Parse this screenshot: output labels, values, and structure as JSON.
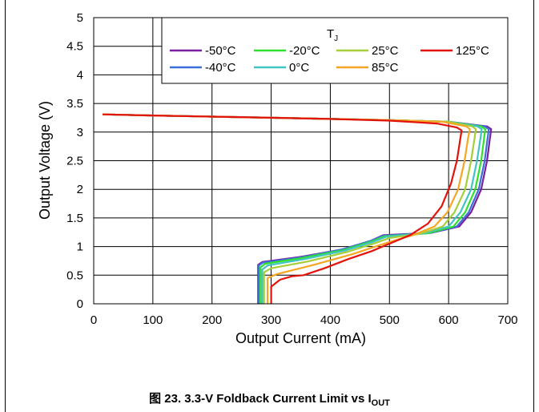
{
  "chart_data": {
    "type": "line",
    "title": "",
    "xlabel": "Output Current (mA)",
    "ylabel": "Output Voltage (V)",
    "xlim": [
      0,
      700
    ],
    "ylim": [
      0,
      5
    ],
    "x_ticks": [
      "0",
      "100",
      "200",
      "300",
      "400",
      "500",
      "600",
      "700"
    ],
    "y_ticks": [
      "0",
      "0.5",
      "1",
      "1.5",
      "2",
      "2.5",
      "3",
      "3.5",
      "4",
      "4.5",
      "5"
    ],
    "grid": true,
    "legend": {
      "title": "T",
      "title_sub": "J",
      "placement": "top-right"
    },
    "series": [
      {
        "name": "-50°C",
        "color": "#7B1FA2",
        "points": [
          [
            278,
            0
          ],
          [
            278,
            0.68
          ],
          [
            285,
            0.73
          ],
          [
            350,
            0.82
          ],
          [
            420,
            0.95
          ],
          [
            468,
            1.1
          ],
          [
            490,
            1.2
          ],
          [
            570,
            1.24
          ],
          [
            618,
            1.35
          ],
          [
            638,
            1.6
          ],
          [
            655,
            2.0
          ],
          [
            665,
            2.5
          ],
          [
            670,
            2.9
          ],
          [
            672,
            3.05
          ],
          [
            665,
            3.1
          ],
          [
            600,
            3.18
          ],
          [
            500,
            3.21
          ],
          [
            400,
            3.23
          ],
          [
            300,
            3.25
          ],
          [
            200,
            3.27
          ],
          [
            100,
            3.29
          ],
          [
            15,
            3.31
          ]
        ]
      },
      {
        "name": "-40°C",
        "color": "#3B6FD9",
        "points": [
          [
            279,
            0
          ],
          [
            279,
            0.67
          ],
          [
            286,
            0.72
          ],
          [
            350,
            0.81
          ],
          [
            420,
            0.95
          ],
          [
            468,
            1.1
          ],
          [
            490,
            1.19
          ],
          [
            568,
            1.24
          ],
          [
            614,
            1.35
          ],
          [
            634,
            1.6
          ],
          [
            651,
            2.0
          ],
          [
            661,
            2.5
          ],
          [
            666,
            2.9
          ],
          [
            668,
            3.05
          ],
          [
            661,
            3.1
          ],
          [
            600,
            3.18
          ],
          [
            500,
            3.21
          ],
          [
            400,
            3.23
          ],
          [
            300,
            3.25
          ],
          [
            200,
            3.27
          ],
          [
            100,
            3.29
          ],
          [
            15,
            3.31
          ]
        ]
      },
      {
        "name": "-20°C",
        "color": "#2FE02F",
        "points": [
          [
            282,
            0
          ],
          [
            282,
            0.64
          ],
          [
            290,
            0.7
          ],
          [
            352,
            0.8
          ],
          [
            422,
            0.94
          ],
          [
            470,
            1.09
          ],
          [
            492,
            1.18
          ],
          [
            564,
            1.23
          ],
          [
            608,
            1.35
          ],
          [
            628,
            1.6
          ],
          [
            645,
            2.0
          ],
          [
            655,
            2.5
          ],
          [
            660,
            2.9
          ],
          [
            662,
            3.05
          ],
          [
            655,
            3.1
          ],
          [
            600,
            3.18
          ],
          [
            500,
            3.21
          ],
          [
            400,
            3.23
          ],
          [
            300,
            3.25
          ],
          [
            200,
            3.27
          ],
          [
            100,
            3.29
          ],
          [
            15,
            3.31
          ]
        ]
      },
      {
        "name": "0°C",
        "color": "#40C4C4",
        "points": [
          [
            285,
            0
          ],
          [
            285,
            0.6
          ],
          [
            294,
            0.67
          ],
          [
            356,
            0.78
          ],
          [
            425,
            0.93
          ],
          [
            472,
            1.08
          ],
          [
            494,
            1.17
          ],
          [
            558,
            1.23
          ],
          [
            600,
            1.35
          ],
          [
            620,
            1.6
          ],
          [
            638,
            2.0
          ],
          [
            648,
            2.5
          ],
          [
            654,
            2.9
          ],
          [
            656,
            3.05
          ],
          [
            649,
            3.1
          ],
          [
            600,
            3.18
          ],
          [
            500,
            3.21
          ],
          [
            400,
            3.23
          ],
          [
            300,
            3.25
          ],
          [
            200,
            3.27
          ],
          [
            100,
            3.29
          ],
          [
            15,
            3.31
          ]
        ]
      },
      {
        "name": "25°C",
        "color": "#A6CE39",
        "points": [
          [
            288,
            0
          ],
          [
            288,
            0.55
          ],
          [
            300,
            0.62
          ],
          [
            362,
            0.74
          ],
          [
            430,
            0.91
          ],
          [
            476,
            1.06
          ],
          [
            500,
            1.15
          ],
          [
            550,
            1.22
          ],
          [
            590,
            1.35
          ],
          [
            610,
            1.6
          ],
          [
            628,
            2.0
          ],
          [
            638,
            2.5
          ],
          [
            644,
            2.9
          ],
          [
            646,
            3.05
          ],
          [
            640,
            3.1
          ],
          [
            600,
            3.18
          ],
          [
            500,
            3.21
          ],
          [
            400,
            3.23
          ],
          [
            300,
            3.25
          ],
          [
            200,
            3.27
          ],
          [
            100,
            3.29
          ],
          [
            15,
            3.31
          ]
        ]
      },
      {
        "name": "85°C",
        "color": "#F5A623",
        "points": [
          [
            294,
            0
          ],
          [
            294,
            0.45
          ],
          [
            310,
            0.52
          ],
          [
            372,
            0.68
          ],
          [
            438,
            0.87
          ],
          [
            482,
            1.02
          ],
          [
            510,
            1.11
          ],
          [
            540,
            1.2
          ],
          [
            576,
            1.35
          ],
          [
            598,
            1.6
          ],
          [
            616,
            2.0
          ],
          [
            627,
            2.5
          ],
          [
            633,
            2.9
          ],
          [
            636,
            3.05
          ],
          [
            630,
            3.1
          ],
          [
            590,
            3.18
          ],
          [
            500,
            3.21
          ],
          [
            400,
            3.23
          ],
          [
            300,
            3.25
          ],
          [
            200,
            3.27
          ],
          [
            100,
            3.29
          ],
          [
            15,
            3.31
          ]
        ]
      },
      {
        "name": "125°C",
        "color": "#E3120B",
        "points": [
          [
            300,
            0
          ],
          [
            300,
            0.3
          ],
          [
            315,
            0.42
          ],
          [
            335,
            0.48
          ],
          [
            355,
            0.5
          ],
          [
            390,
            0.62
          ],
          [
            430,
            0.78
          ],
          [
            470,
            0.92
          ],
          [
            500,
            1.05
          ],
          [
            535,
            1.2
          ],
          [
            565,
            1.4
          ],
          [
            588,
            1.7
          ],
          [
            604,
            2.1
          ],
          [
            614,
            2.5
          ],
          [
            620,
            2.9
          ],
          [
            622,
            3.03
          ],
          [
            614,
            3.08
          ],
          [
            580,
            3.15
          ],
          [
            500,
            3.2
          ],
          [
            400,
            3.23
          ],
          [
            300,
            3.25
          ],
          [
            200,
            3.27
          ],
          [
            100,
            3.29
          ],
          [
            15,
            3.31
          ]
        ]
      }
    ]
  },
  "caption": {
    "prefix": "图 23. 3.3-V Foldback Current Limit vs I",
    "sub": "OUT"
  }
}
